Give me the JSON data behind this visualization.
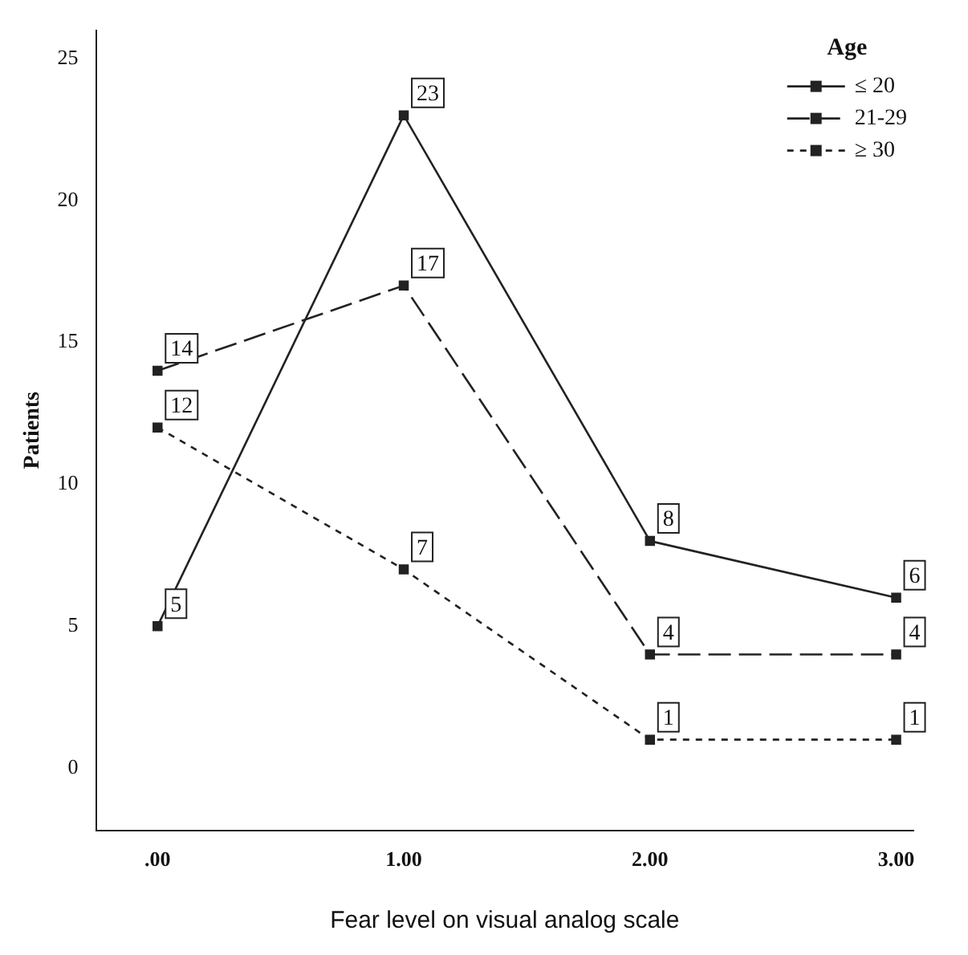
{
  "chart_data": {
    "type": "line",
    "xlabel": "Fear level on visual analog scale",
    "ylabel": "Patients",
    "legend_title": "Age",
    "x": [
      0,
      1,
      2,
      3
    ],
    "series": [
      {
        "name": "≤ 20",
        "color": "#222222",
        "values": [
          5,
          23,
          8,
          6
        ],
        "line_style": "solid"
      },
      {
        "name": "21-29",
        "color": "#222222",
        "values": [
          14,
          17,
          4,
          4
        ],
        "line_style": "dashed"
      },
      {
        "name": "≥ 30",
        "color": "#222222",
        "values": [
          12,
          7,
          1,
          1
        ],
        "line_style": "dotted"
      }
    ],
    "xlim": [
      -0.25,
      3.07
    ],
    "xticks": [
      {
        "value": 0,
        "label": ".00"
      },
      {
        "value": 1,
        "label": "1.00"
      },
      {
        "value": 2,
        "label": "2.00"
      },
      {
        "value": 3,
        "label": "3.00"
      }
    ],
    "ylim": [
      -2.2,
      26
    ],
    "yticks": [
      0,
      5,
      10,
      15,
      20,
      25
    ],
    "marker": "square",
    "data_labels": true,
    "legend": "top right",
    "grid": false
  }
}
